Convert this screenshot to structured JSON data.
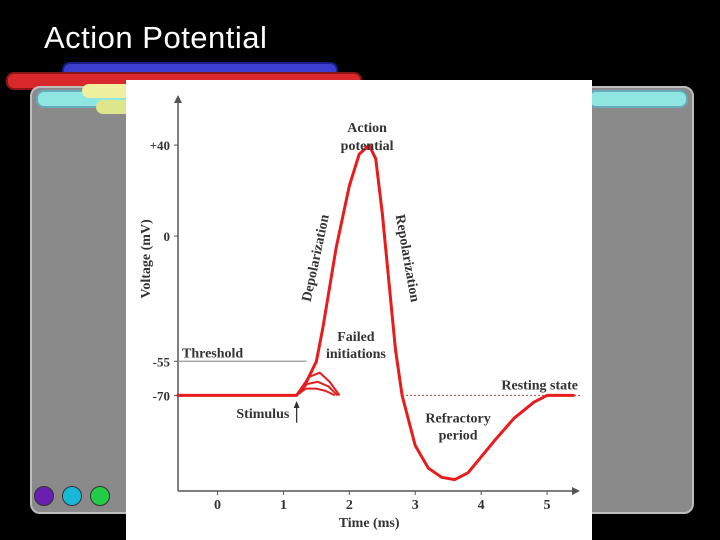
{
  "slide": {
    "title": "Action Potential"
  },
  "colors": {
    "curve": "#e81c1c",
    "threshold_line": "#999999",
    "resting_line": "#b06060",
    "text": "#333333"
  },
  "chart_data": {
    "type": "line",
    "title": "",
    "xlabel": "Time (ms)",
    "ylabel": "Voltage (mV)",
    "xlim": [
      -0.6,
      5.5
    ],
    "ylim": [
      -112,
      62
    ],
    "x_ticks": [
      {
        "value": 0,
        "label": "0"
      },
      {
        "value": 1,
        "label": "1"
      },
      {
        "value": 2,
        "label": "2"
      },
      {
        "value": 3,
        "label": "3"
      },
      {
        "value": 4,
        "label": "4"
      },
      {
        "value": 5,
        "label": "5"
      }
    ],
    "y_ticks": [
      {
        "value": 40,
        "label": "+40"
      },
      {
        "value": 0,
        "label": "0"
      },
      {
        "value": -55,
        "label": "-55"
      },
      {
        "value": -70,
        "label": "-70"
      }
    ],
    "threshold": {
      "value": -55,
      "label": "Threshold"
    },
    "resting": {
      "value": -70,
      "label": "Resting state"
    },
    "series": [
      {
        "x": [
          -0.6,
          0.0,
          0.5,
          1.0,
          1.2,
          1.35,
          1.5,
          1.6,
          1.8,
          2.0,
          2.15,
          2.3,
          2.4,
          2.5,
          2.6,
          2.7,
          2.8,
          3.0,
          3.2,
          3.4,
          3.6,
          3.8,
          4.0,
          4.2,
          4.5,
          4.8,
          5.0,
          5.2,
          5.4
        ],
        "y": [
          -70,
          -70,
          -70,
          -70,
          -70,
          -64,
          -55,
          -40,
          -5,
          22,
          36,
          40,
          34,
          10,
          -20,
          -50,
          -70,
          -92,
          -102,
          -106,
          -107,
          -104,
          -97,
          -90,
          -80,
          -73,
          -70,
          -70,
          -70
        ]
      }
    ],
    "failed_initiations": [
      {
        "x": [
          1.2,
          1.38,
          1.55,
          1.7,
          1.85
        ],
        "y": [
          -70,
          -62,
          -60,
          -64,
          -70
        ]
      },
      {
        "x": [
          1.2,
          1.36,
          1.52,
          1.68,
          1.82
        ],
        "y": [
          -70,
          -65,
          -64,
          -66,
          -70
        ]
      },
      {
        "x": [
          1.2,
          1.34,
          1.5,
          1.64,
          1.78
        ],
        "y": [
          -70,
          -67,
          -67,
          -68,
          -70
        ]
      }
    ],
    "annotations": {
      "action_potential": [
        "Action",
        "potential"
      ],
      "depolarization": "Depolarization",
      "repolarization": "Repolarization",
      "failed_initiations": [
        "Failed",
        "initiations"
      ],
      "stimulus": "Stimulus",
      "refractory_period": [
        "Refractory",
        "period"
      ]
    }
  }
}
